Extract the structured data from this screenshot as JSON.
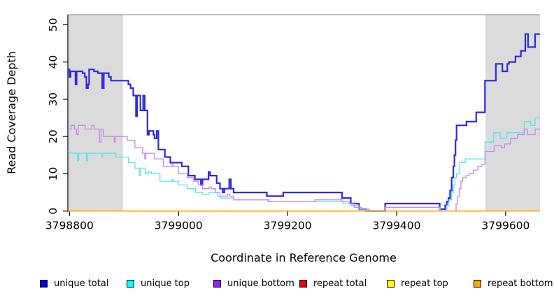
{
  "chart_data": {
    "type": "line",
    "subtype": "step",
    "title": "",
    "xlabel": "Coordinate in Reference Genome",
    "ylabel": "Read Coverage Depth",
    "xlim": [
      3798797,
      3799663
    ],
    "ylim": [
      0,
      52.7
    ],
    "xticks": [
      3798800,
      3799000,
      3799200,
      3799400,
      3799600
    ],
    "yticks": [
      0,
      10,
      20,
      30,
      40,
      50
    ],
    "grid": false,
    "legend_position": "bottom",
    "band_color": "#DBDBDB",
    "shaded_regions": [
      {
        "x0": 3798797,
        "x1": 3798898
      },
      {
        "x0": 3799563,
        "x1": 3799663
      }
    ],
    "series": [
      {
        "name": "unique total",
        "color": "#0000EE",
        "line_color": "#2B2BDD",
        "line_width": 2.2,
        "points": [
          [
            3798797,
            38
          ],
          [
            3798800,
            36
          ],
          [
            3798802,
            37.5
          ],
          [
            3798809,
            37.5
          ],
          [
            3798811,
            34
          ],
          [
            3798813,
            37.5
          ],
          [
            3798824,
            37
          ],
          [
            3798828,
            36
          ],
          [
            3798831,
            33
          ],
          [
            3798834,
            34
          ],
          [
            3798836,
            38
          ],
          [
            3798845,
            37.5
          ],
          [
            3798852,
            37
          ],
          [
            3798860,
            33
          ],
          [
            3798863,
            37
          ],
          [
            3798872,
            36
          ],
          [
            3798876,
            35
          ],
          [
            3798904,
            35
          ],
          [
            3798908,
            34
          ],
          [
            3798912,
            33
          ],
          [
            3798917,
            31
          ],
          [
            3798922,
            25.5
          ],
          [
            3798924,
            31
          ],
          [
            3798930,
            27
          ],
          [
            3798935,
            31
          ],
          [
            3798938,
            27
          ],
          [
            3798943,
            20.5
          ],
          [
            3798946,
            21.5
          ],
          [
            3798954,
            20.5
          ],
          [
            3798956,
            19.5
          ],
          [
            3798960,
            21.5
          ],
          [
            3798963,
            16.5
          ],
          [
            3798972,
            16.5
          ],
          [
            3798975,
            14.5
          ],
          [
            3798982,
            14.5
          ],
          [
            3798985,
            13
          ],
          [
            3799003,
            13
          ],
          [
            3799006,
            12
          ],
          [
            3799015,
            12
          ],
          [
            3799018,
            9.5
          ],
          [
            3799027,
            9.5
          ],
          [
            3799030,
            8.5
          ],
          [
            3799039,
            8.5
          ],
          [
            3799041,
            7
          ],
          [
            3799044,
            8.5
          ],
          [
            3799053,
            8.5
          ],
          [
            3799055,
            10.5
          ],
          [
            3799058,
            9.5
          ],
          [
            3799067,
            9.5
          ],
          [
            3799070,
            7.5
          ],
          [
            3799076,
            6
          ],
          [
            3799081,
            5
          ],
          [
            3799084,
            6
          ],
          [
            3799091,
            6
          ],
          [
            3799093,
            8.5
          ],
          [
            3799096,
            6
          ],
          [
            3799101,
            5
          ],
          [
            3799158,
            5
          ],
          [
            3799162,
            4
          ],
          [
            3799188,
            4
          ],
          [
            3799192,
            5
          ],
          [
            3799296,
            5
          ],
          [
            3799300,
            3.5
          ],
          [
            3799313,
            3.5
          ],
          [
            3799316,
            2
          ],
          [
            3799328,
            2
          ],
          [
            3799331,
            0.5
          ],
          [
            3799344,
            0
          ],
          [
            3799377,
            0
          ],
          [
            3799379,
            2
          ],
          [
            3799476,
            2
          ],
          [
            3799479,
            0.5
          ],
          [
            3799489,
            1.5
          ],
          [
            3799492,
            2.5
          ],
          [
            3799495,
            3.5
          ],
          [
            3799498,
            5.5
          ],
          [
            3799501,
            9
          ],
          [
            3799504,
            12
          ],
          [
            3799506,
            15
          ],
          [
            3799508,
            19
          ],
          [
            3799510,
            23
          ],
          [
            3799526,
            23
          ],
          [
            3799528,
            24
          ],
          [
            3799543,
            24
          ],
          [
            3799546,
            26.5
          ],
          [
            3799560,
            26.5
          ],
          [
            3799562,
            35
          ],
          [
            3799580,
            35
          ],
          [
            3799582,
            39.5
          ],
          [
            3799592,
            39.5
          ],
          [
            3799594,
            37.5
          ],
          [
            3799601,
            37.5
          ],
          [
            3799603,
            39.5
          ],
          [
            3799606,
            40
          ],
          [
            3799616,
            40
          ],
          [
            3799618,
            41.5
          ],
          [
            3799626,
            41.5
          ],
          [
            3799628,
            43
          ],
          [
            3799634,
            43
          ],
          [
            3799636,
            47.5
          ],
          [
            3799639,
            47.5
          ],
          [
            3799641,
            44
          ],
          [
            3799652,
            44
          ],
          [
            3799654,
            47.5
          ],
          [
            3799663,
            47.5
          ]
        ]
      },
      {
        "name": "unique top",
        "color": "#00FFFF",
        "line_color": "#55E6EE",
        "line_width": 1.3,
        "points": [
          [
            3798797,
            16
          ],
          [
            3798801,
            15.5
          ],
          [
            3798813,
            15.5
          ],
          [
            3798815,
            13.5
          ],
          [
            3798817,
            15.5
          ],
          [
            3798829,
            15.5
          ],
          [
            3798831,
            13.5
          ],
          [
            3798833,
            15.5
          ],
          [
            3798857,
            15.5
          ],
          [
            3798859,
            14.5
          ],
          [
            3798861,
            15.5
          ],
          [
            3798882,
            15.5
          ],
          [
            3798885,
            14.5
          ],
          [
            3798904,
            14.5
          ],
          [
            3798908,
            13
          ],
          [
            3798916,
            13
          ],
          [
            3798920,
            11.5
          ],
          [
            3798926,
            11.5
          ],
          [
            3798928,
            9.5
          ],
          [
            3798930,
            11.5
          ],
          [
            3798936,
            11.5
          ],
          [
            3798939,
            10
          ],
          [
            3798945,
            10.5
          ],
          [
            3798950,
            10
          ],
          [
            3798963,
            10
          ],
          [
            3798966,
            8
          ],
          [
            3798985,
            8
          ],
          [
            3798988,
            8.5
          ],
          [
            3798990,
            8
          ],
          [
            3799000,
            7
          ],
          [
            3799013,
            7
          ],
          [
            3799016,
            6
          ],
          [
            3799028,
            6
          ],
          [
            3799031,
            5
          ],
          [
            3799041,
            5
          ],
          [
            3799044,
            4.5
          ],
          [
            3799054,
            4.5
          ],
          [
            3799056,
            5
          ],
          [
            3799067,
            5
          ],
          [
            3799071,
            4
          ],
          [
            3799076,
            3.5
          ],
          [
            3799096,
            3.5
          ],
          [
            3799101,
            3
          ],
          [
            3799158,
            3
          ],
          [
            3799164,
            2.5
          ],
          [
            3799296,
            2.5
          ],
          [
            3799302,
            2
          ],
          [
            3799316,
            1.5
          ],
          [
            3799330,
            0.5
          ],
          [
            3799344,
            0
          ],
          [
            3799377,
            0
          ],
          [
            3799379,
            1
          ],
          [
            3799476,
            1
          ],
          [
            3799479,
            0
          ],
          [
            3799492,
            1.5
          ],
          [
            3799496,
            3
          ],
          [
            3799501,
            5
          ],
          [
            3799504,
            7
          ],
          [
            3799507,
            9
          ],
          [
            3799510,
            10
          ],
          [
            3799516,
            13
          ],
          [
            3799526,
            14
          ],
          [
            3799560,
            14
          ],
          [
            3799562,
            18.5
          ],
          [
            3799576,
            18.5
          ],
          [
            3799578,
            21
          ],
          [
            3799588,
            21
          ],
          [
            3799590,
            19.5
          ],
          [
            3799600,
            19.5
          ],
          [
            3799602,
            21
          ],
          [
            3799632,
            21
          ],
          [
            3799634,
            24
          ],
          [
            3799644,
            24
          ],
          [
            3799646,
            23
          ],
          [
            3799652,
            23
          ],
          [
            3799654,
            25
          ],
          [
            3799663,
            25
          ]
        ]
      },
      {
        "name": "unique bottom",
        "color": "#A020F0",
        "line_color": "#C687EC",
        "line_width": 1.3,
        "points": [
          [
            3798797,
            22
          ],
          [
            3798803,
            23
          ],
          [
            3798809,
            22
          ],
          [
            3798813,
            20.5
          ],
          [
            3798816,
            23
          ],
          [
            3798826,
            23
          ],
          [
            3798829,
            22
          ],
          [
            3798838,
            22
          ],
          [
            3798841,
            23
          ],
          [
            3798845,
            22
          ],
          [
            3798855,
            18.5
          ],
          [
            3798858,
            22
          ],
          [
            3798862,
            20
          ],
          [
            3798880,
            20
          ],
          [
            3798882,
            18.5
          ],
          [
            3798884,
            20
          ],
          [
            3798902,
            20
          ],
          [
            3798906,
            19
          ],
          [
            3798916,
            19
          ],
          [
            3798920,
            17
          ],
          [
            3798930,
            17
          ],
          [
            3798934,
            15.5
          ],
          [
            3798938,
            14
          ],
          [
            3798940,
            15.5
          ],
          [
            3798952,
            15.5
          ],
          [
            3798956,
            14
          ],
          [
            3798968,
            14
          ],
          [
            3798972,
            12
          ],
          [
            3798984,
            12
          ],
          [
            3798988,
            12.5
          ],
          [
            3798990,
            12
          ],
          [
            3799000,
            10
          ],
          [
            3799012,
            10
          ],
          [
            3799016,
            9
          ],
          [
            3799024,
            9
          ],
          [
            3799028,
            8
          ],
          [
            3799036,
            7
          ],
          [
            3799044,
            6
          ],
          [
            3799052,
            6
          ],
          [
            3799056,
            6.5
          ],
          [
            3799060,
            6
          ],
          [
            3799068,
            5
          ],
          [
            3799076,
            4
          ],
          [
            3799086,
            4
          ],
          [
            3799090,
            4.5
          ],
          [
            3799094,
            4
          ],
          [
            3799101,
            3
          ],
          [
            3799160,
            3
          ],
          [
            3799166,
            2.5
          ],
          [
            3799240,
            2.5
          ],
          [
            3799250,
            3
          ],
          [
            3799290,
            3
          ],
          [
            3799300,
            2.5
          ],
          [
            3799313,
            2
          ],
          [
            3799322,
            1
          ],
          [
            3799336,
            0.5
          ],
          [
            3799350,
            0
          ],
          [
            3799377,
            0
          ],
          [
            3799379,
            1
          ],
          [
            3799476,
            1
          ],
          [
            3799480,
            0
          ],
          [
            3799506,
            0
          ],
          [
            3799509,
            2
          ],
          [
            3799512,
            4
          ],
          [
            3799515,
            6
          ],
          [
            3799518,
            8
          ],
          [
            3799521,
            9
          ],
          [
            3799527,
            9.5
          ],
          [
            3799533,
            10
          ],
          [
            3799541,
            11
          ],
          [
            3799549,
            12
          ],
          [
            3799556,
            12.5
          ],
          [
            3799560,
            12.5
          ],
          [
            3799562,
            16
          ],
          [
            3799577,
            16
          ],
          [
            3799579,
            17.5
          ],
          [
            3799590,
            17.5
          ],
          [
            3799592,
            17
          ],
          [
            3799596,
            17
          ],
          [
            3799598,
            18
          ],
          [
            3799607,
            18
          ],
          [
            3799609,
            19.5
          ],
          [
            3799620,
            19.5
          ],
          [
            3799622,
            20.5
          ],
          [
            3799632,
            20.5
          ],
          [
            3799634,
            22
          ],
          [
            3799638,
            22
          ],
          [
            3799640,
            20.5
          ],
          [
            3799652,
            20.5
          ],
          [
            3799654,
            22
          ],
          [
            3799663,
            22
          ]
        ]
      },
      {
        "name": "repeat total",
        "color": "#EE0000",
        "line_color": "#EE0000",
        "line_width": 1.3,
        "points": [
          [
            3798797,
            0
          ],
          [
            3799663,
            0
          ]
        ]
      },
      {
        "name": "repeat top",
        "color": "#FFFF00",
        "line_color": "#FFFF00",
        "line_width": 1.3,
        "points": [
          [
            3798797,
            0
          ],
          [
            3799663,
            0
          ]
        ]
      },
      {
        "name": "repeat bottom",
        "color": "#FFA500",
        "line_color": "#FFA500",
        "line_width": 1.6,
        "points": [
          [
            3798797,
            0
          ],
          [
            3799663,
            0
          ]
        ]
      }
    ]
  }
}
